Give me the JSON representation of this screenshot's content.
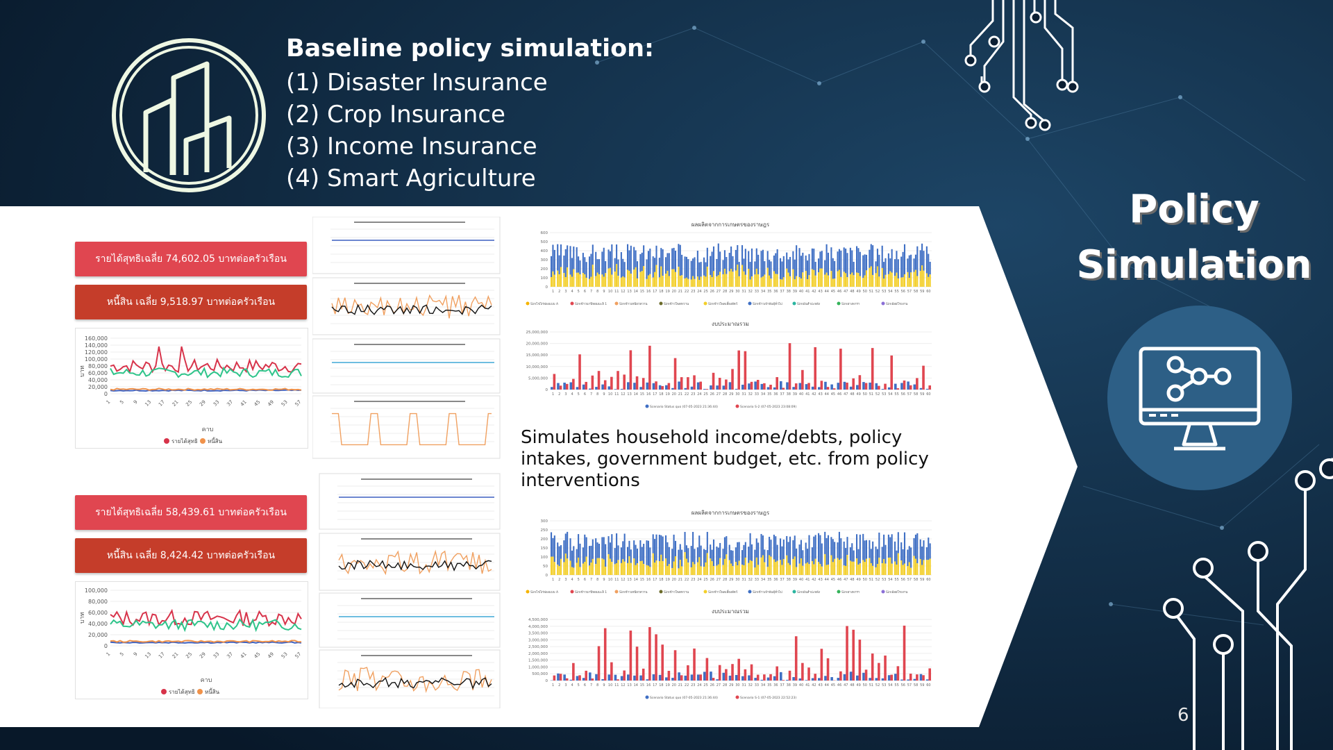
{
  "header": {
    "title": "Baseline policy simulation:",
    "items": [
      "(1) Disaster Insurance",
      "(2) Crop Insurance",
      "(3) Income Insurance",
      "(4) Smart Agriculture"
    ]
  },
  "side": {
    "title_line1": "Policy",
    "title_line2": "Simulation"
  },
  "page_number": "6",
  "description": "Simulates household income/debts, policy intakes, government budget, etc. from policy interventions",
  "scenario_top": {
    "income_label": "รายได้สุทธิเฉลี่ย 74,602.05 บาทต่อครัวเรือน",
    "debt_label": "หนี้สิน เฉลี่ย 9,518.97 บาทต่อครัวเรือน",
    "chart": {
      "type": "line",
      "yticks": [
        "160,000",
        "140,000",
        "120,000",
        "100,000",
        "80,000",
        "60,000",
        "40,000",
        "20,000",
        "0"
      ],
      "ylim": [
        0,
        160000
      ],
      "xticks": [
        "1",
        "5",
        "9",
        "13",
        "17",
        "21",
        "25",
        "29",
        "33",
        "37",
        "41",
        "45",
        "49",
        "53",
        "57"
      ],
      "ylabel": "บาท",
      "xlabel": "คาบ",
      "legend": [
        "รายได้สุทธิ",
        "หนี้สิน"
      ]
    }
  },
  "scenario_bottom": {
    "income_label": "รายได้สุทธิเฉลี่ย 58,439.61 บาทต่อครัวเรือน",
    "debt_label": "หนี้สิน เฉลี่ย 8,424.42 บาทต่อครัวเรือน",
    "chart": {
      "type": "line",
      "yticks": [
        "100,000",
        "80,000",
        "60,000",
        "40,000",
        "20,000",
        "0"
      ],
      "ylim": [
        0,
        100000
      ],
      "xticks": [
        "1",
        "5",
        "9",
        "13",
        "17",
        "21",
        "25",
        "29",
        "33",
        "37",
        "41",
        "45",
        "49",
        "53",
        "57"
      ],
      "ylabel": "บาท",
      "xlabel": "คาบ",
      "legend": [
        "รายได้สุทธิ",
        "หนี้สิน"
      ]
    }
  },
  "chart_data": [
    {
      "type": "bar",
      "title": "ผลผลิตจากการเกษตรของราษฎร",
      "ylim": [
        0,
        600
      ],
      "yticks": [
        "600",
        "500",
        "400",
        "300",
        "200",
        "100",
        "0"
      ],
      "categories_count": 60,
      "legend": [
        "Simไข่ไก่ฟองแบบ A",
        "Simข้าวนาปีหอมมะลิ 1",
        "Simข้าวเหนียวหวาน",
        "Simข้าวโพดหวาน",
        "Simข้าวโพดเลี้ยงสัตว์",
        "Simข้าวเจ้าพันธุ์ทั่วไป",
        "Simมันสำปะหลัง",
        "Simยางพารา",
        "Simอ้อยโรงงาน"
      ]
    },
    {
      "type": "bar",
      "title": "งบประมาณรวม",
      "ylim": [
        0,
        25000000
      ],
      "yticks": [
        "25,000,000",
        "20,000,000",
        "15,000,000",
        "10,000,000",
        "5,000,000",
        "0"
      ],
      "categories_count": 60,
      "legend": [
        "Scenario Status quo (07-05-2023 21:36:44)",
        "Scenario S-2 (07-05-2023 23:08:09)"
      ]
    },
    {
      "type": "bar",
      "title": "ผลผลิตจากการเกษตรของราษฎร",
      "ylim": [
        0,
        300
      ],
      "yticks": [
        "300",
        "250",
        "200",
        "150",
        "100",
        "50",
        "0"
      ],
      "categories_count": 60,
      "legend": [
        "Simไข่ไก่ฟองแบบ A",
        "Simข้าวนาปีหอมมะลิ 1",
        "Simข้าวเหนียวหวาน",
        "Simข้าวโพดหวาน",
        "Simข้าวโพดเลี้ยงสัตว์",
        "Simข้าวเจ้าพันธุ์ทั่วไป",
        "Simมันสำปะหลัง",
        "Simยางพารา",
        "Simอ้อยโรงงาน"
      ]
    },
    {
      "type": "bar",
      "title": "งบประมาณรวม",
      "ylim": [
        0,
        4500000
      ],
      "yticks": [
        "4,500,000",
        "4,000,000",
        "3,500,000",
        "3,000,000",
        "2,500,000",
        "2,000,000",
        "1,500,000",
        "1,000,000",
        "500,000",
        "0"
      ],
      "categories_count": 60,
      "legend": [
        "Scenario Status quo (07-05-2023 21:36:44)",
        "Scenario S-1 (07-05-2023 22:52:23)"
      ]
    }
  ],
  "colors": {
    "income": "#e04650",
    "debt": "#c53d2a",
    "red_line": "#d7334a",
    "green_line": "#2ec48a",
    "blue_line": "#3b5fc0",
    "bar_blue": "#3f6fc4",
    "bar_yellow": "#f3cf2a",
    "bar_red": "#e04650"
  }
}
